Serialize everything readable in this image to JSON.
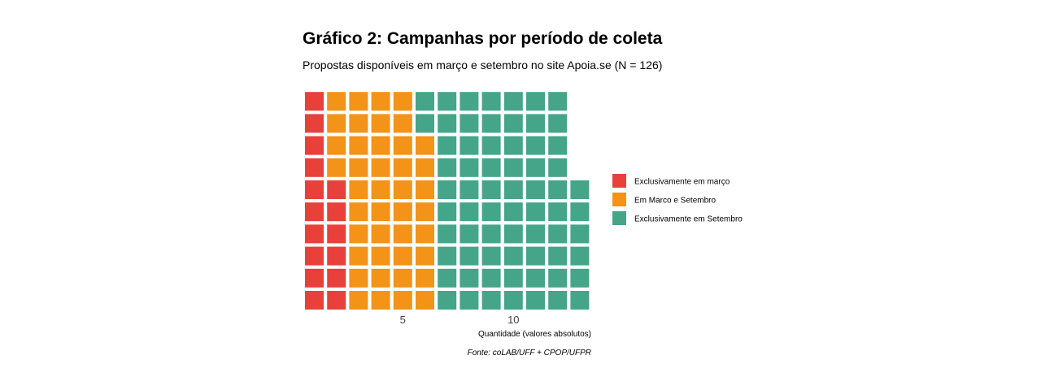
{
  "title": "Gráfico 2: Campanhas por período de coleta",
  "subtitle": "Propostas disponíveis em março e setembro no site Apoia.se (N = 126)",
  "chart_data": {
    "type": "waffle",
    "rows": 10,
    "fill_order": "column-wise, bottom to top",
    "categories": [
      "Exclusivamente em março",
      "Em Marco e Setembro",
      "Exclusivamente em Setembro"
    ],
    "values": [
      16,
      42,
      68
    ],
    "colors": [
      "#e8403a",
      "#f39318",
      "#45a589"
    ],
    "total": 126,
    "x_ticks": [
      5,
      10
    ],
    "xlabel": "Quantidade (valores absolutos)",
    "caption": "Fonte: coLAB/UFF + CPOP/UFPR",
    "legend_position": "right"
  }
}
